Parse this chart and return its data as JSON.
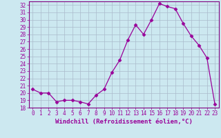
{
  "x": [
    0,
    1,
    2,
    3,
    4,
    5,
    6,
    7,
    8,
    9,
    10,
    11,
    12,
    13,
    14,
    15,
    16,
    17,
    18,
    19,
    20,
    21,
    22,
    23
  ],
  "y": [
    20.5,
    20.0,
    20.0,
    18.8,
    19.0,
    19.0,
    18.8,
    18.5,
    19.7,
    20.5,
    22.8,
    24.5,
    27.2,
    29.3,
    28.0,
    30.0,
    32.2,
    31.8,
    31.5,
    29.5,
    27.8,
    26.5,
    24.8,
    18.5
  ],
  "line_color": "#990099",
  "marker": "D",
  "marker_size": 2.5,
  "bg_color": "#cce8f0",
  "grid_color": "#aabbcc",
  "xlabel": "Windchill (Refroidissement éolien,°C)",
  "ylim": [
    18,
    32.5
  ],
  "xlim": [
    -0.5,
    23.5
  ],
  "yticks": [
    18,
    19,
    20,
    21,
    22,
    23,
    24,
    25,
    26,
    27,
    28,
    29,
    30,
    31,
    32
  ],
  "xticks": [
    0,
    1,
    2,
    3,
    4,
    5,
    6,
    7,
    8,
    9,
    10,
    11,
    12,
    13,
    14,
    15,
    16,
    17,
    18,
    19,
    20,
    21,
    22,
    23
  ],
  "tick_fontsize": 5.5,
  "xlabel_fontsize": 6.5,
  "spine_color": "#800080"
}
